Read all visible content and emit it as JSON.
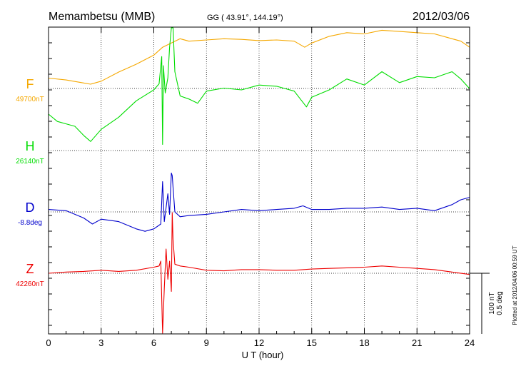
{
  "header": {
    "station": "Memambetsu (MMB)",
    "coords": "GG ( 43.91°, 144.19°)",
    "date": "2012/03/06"
  },
  "footer": {
    "plotted_note": "Plotted at 2012/04/06 00:59 UT"
  },
  "colors": {
    "F": "#f5a800",
    "H": "#00dd00",
    "D": "#0000cc",
    "Z": "#ee0000",
    "axis": "#000000",
    "grid": "#000000"
  },
  "chart_data": {
    "type": "line",
    "xlabel": "U T (hour)",
    "xlim": [
      0,
      24
    ],
    "xticks": [
      "0",
      "3",
      "6",
      "9",
      "12",
      "15",
      "18",
      "21",
      "24"
    ],
    "scale_bar": {
      "nT": "100 nT",
      "deg": "0.5 deg"
    },
    "grid": true,
    "series": [
      {
        "name": "F",
        "baseline_label": "49700nT",
        "unit": "nT",
        "x": [
          0,
          1,
          2,
          2.4,
          3,
          4,
          5,
          6,
          6.5,
          7,
          7.5,
          8,
          9,
          10,
          11,
          12,
          13,
          14,
          14.6,
          15,
          16,
          17,
          18,
          19,
          20,
          21,
          22,
          23,
          23.5,
          24
        ],
        "y": [
          17,
          14,
          9,
          7,
          12,
          27,
          40,
          55,
          68,
          75,
          82,
          78,
          80,
          82,
          81,
          79,
          80,
          78,
          68,
          75,
          86,
          92,
          90,
          96,
          94,
          92,
          90,
          82,
          78,
          68
        ]
      },
      {
        "name": "H",
        "baseline_label": "26140nT",
        "unit": "nT",
        "x": [
          0,
          0.5,
          1,
          1.5,
          2,
          2.4,
          3,
          4,
          5,
          6,
          6.3,
          6.45,
          6.5,
          6.55,
          6.65,
          6.8,
          6.9,
          7.0,
          7.05,
          7.1,
          7.2,
          7.5,
          8,
          8.5,
          9,
          10,
          11,
          12,
          13,
          14,
          14.7,
          15,
          16,
          17,
          18,
          19,
          20,
          21,
          22,
          23,
          23.5,
          24
        ],
        "y": [
          60,
          48,
          44,
          40,
          25,
          15,
          35,
          55,
          82,
          100,
          110,
          155,
          10,
          140,
          95,
          120,
          170,
          210,
          360,
          230,
          130,
          90,
          85,
          78,
          98,
          103,
          100,
          108,
          106,
          98,
          72,
          88,
          100,
          118,
          108,
          130,
          112,
          122,
          120,
          130,
          118,
          102
        ]
      },
      {
        "name": "D",
        "baseline_label": "-8.8deg",
        "unit": "deg",
        "x": [
          0,
          1,
          2,
          2.5,
          3,
          4,
          5,
          5.5,
          6,
          6.4,
          6.5,
          6.6,
          6.8,
          6.9,
          7.0,
          7.05,
          7.1,
          7.2,
          7.5,
          8,
          9,
          10,
          11,
          12,
          13,
          14,
          14.5,
          15,
          16,
          17,
          18,
          19,
          20,
          21,
          22,
          23,
          23.5,
          24
        ],
        "y": [
          0.02,
          0.01,
          -0.05,
          -0.1,
          -0.06,
          -0.08,
          -0.14,
          -0.16,
          -0.14,
          -0.1,
          0.25,
          -0.08,
          0.15,
          -0.02,
          0.32,
          0.3,
          0.2,
          0.0,
          -0.04,
          -0.03,
          -0.02,
          0.0,
          0.02,
          0.01,
          0.02,
          0.03,
          0.05,
          0.02,
          0.02,
          0.03,
          0.03,
          0.04,
          0.02,
          0.03,
          0.01,
          0.06,
          0.1,
          0.12
        ]
      },
      {
        "name": "Z",
        "baseline_label": "42260nT",
        "unit": "nT",
        "x": [
          0,
          1,
          2,
          3,
          4,
          5,
          6,
          6.3,
          6.4,
          6.5,
          6.6,
          6.7,
          6.8,
          6.9,
          7.0,
          7.05,
          7.1,
          7.2,
          7.5,
          8,
          9,
          10,
          11,
          12,
          13,
          14,
          15,
          16,
          17,
          18,
          19,
          20,
          21,
          22,
          23,
          24
        ],
        "y": [
          0,
          2,
          3,
          5,
          3,
          5,
          10,
          12,
          20,
          -135,
          -25,
          40,
          -10,
          20,
          -30,
          100,
          55,
          15,
          12,
          10,
          5,
          4,
          6,
          6,
          5,
          5,
          7,
          8,
          9,
          10,
          12,
          10,
          8,
          6,
          2,
          -2
        ]
      }
    ]
  }
}
